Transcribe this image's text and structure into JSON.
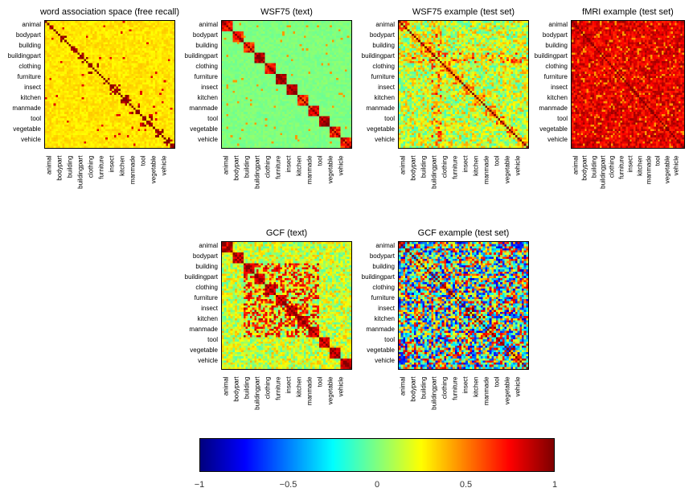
{
  "chart_data": [
    {
      "type": "heatmap",
      "title": "word association space (free recall)",
      "style": "sparse",
      "categories": [
        "animal",
        "bodypart",
        "building",
        "buildingpart",
        "clothing",
        "furniture",
        "insect",
        "kitchen",
        "manmade",
        "tool",
        "vegetable",
        "vehicle"
      ]
    },
    {
      "type": "heatmap",
      "title": "WSF75 (text)",
      "style": "block",
      "categories": [
        "animal",
        "bodypart",
        "building",
        "buildingpart",
        "clothing",
        "furniture",
        "insect",
        "kitchen",
        "manmade",
        "tool",
        "vegetable",
        "vehicle"
      ]
    },
    {
      "type": "heatmap",
      "title": "WSF75 example (test set)",
      "style": "noisy",
      "categories": [
        "animal",
        "bodypart",
        "building",
        "buildingpart",
        "clothing",
        "furniture",
        "insect",
        "kitchen",
        "manmade",
        "tool",
        "vegetable",
        "vehicle"
      ]
    },
    {
      "type": "heatmap",
      "title": "fMRI example (test set)",
      "style": "hot",
      "categories": [
        "animal",
        "bodypart",
        "building",
        "buildingpart",
        "clothing",
        "furniture",
        "insect",
        "kitchen",
        "manmade",
        "tool",
        "vegetable",
        "vehicle"
      ]
    },
    {
      "type": "heatmap",
      "title": "GCF (text)",
      "style": "dense",
      "categories": [
        "animal",
        "bodypart",
        "building",
        "buildingpart",
        "clothing",
        "furniture",
        "insect",
        "kitchen",
        "manmade",
        "tool",
        "vegetable",
        "vehicle"
      ]
    },
    {
      "type": "heatmap",
      "title": "GCF example (test set)",
      "style": "full",
      "categories": [
        "animal",
        "bodypart",
        "building",
        "buildingpart",
        "clothing",
        "furniture",
        "insect",
        "kitchen",
        "manmade",
        "tool",
        "vegetable",
        "vehicle"
      ]
    }
  ],
  "colorbar": {
    "colormap": "jet",
    "range": [
      -1,
      1
    ],
    "ticks": [
      "−1",
      "−0.5",
      "0",
      "0.5",
      "1"
    ],
    "tick_values": [
      -1,
      -0.5,
      0,
      0.5,
      1
    ]
  }
}
